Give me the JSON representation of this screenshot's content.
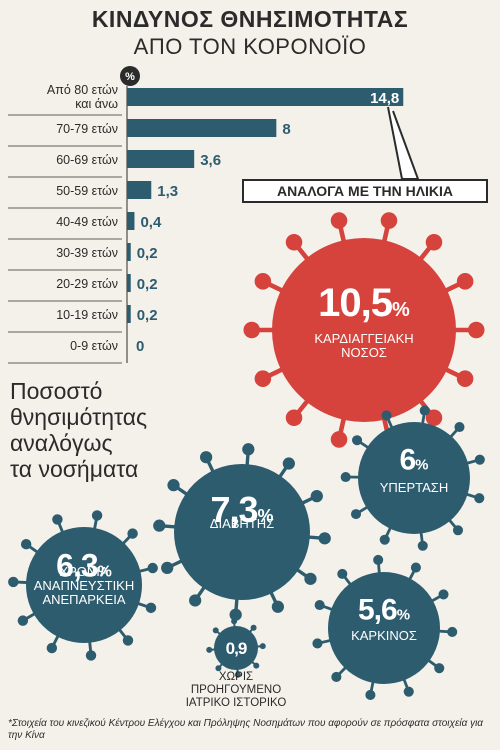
{
  "title": "ΚΙΝΔΥΝΟΣ ΘΝΗΣΙΜΟΤΗΤΑΣ",
  "subtitle": "ΑΠΟ ΤΟΝ ΚΟΡΟΝΟΪΟ",
  "side_title": [
    "Ποσοστό",
    "θνησιμότητας",
    "αναλόγως",
    "τα νοσήματα"
  ],
  "callout": "ΑΝΑΛΟΓΑ ΜΕ ΤΗΝ ΗΛΙΚΙΑ",
  "footnote": "*Στοιχεία του κινεζικού Κέντρου Ελέγχου και Πρόληψης Νοσημάτων που αφορούν σε πρόσφατα στοιχεία για την Κίνα",
  "colors": {
    "bar": "#2d5c6f",
    "teal_virus": "#2d5c6f",
    "red_virus": "#d6423c",
    "text": "#2b2b2b"
  },
  "chart_data": [
    {
      "type": "bar",
      "orientation": "horizontal",
      "unit_label": "%",
      "categories": [
        "Από 80 ετών\nκαι άνω",
        "70-79 ετών",
        "60-69 ετών",
        "50-59 ετών",
        "40-49 ετών",
        "30-39 ετών",
        "20-29 ετών",
        "10-19 ετών",
        "0-9 ετών"
      ],
      "values": [
        14.8,
        8,
        3.6,
        1.3,
        0.4,
        0.2,
        0.2,
        0.2,
        0
      ],
      "value_labels": [
        "14,8",
        "8",
        "3,6",
        "1,3",
        "0,4",
        "0,2",
        "0,2",
        "0,2",
        "0"
      ],
      "xlim": [
        0,
        15
      ]
    },
    {
      "type": "bubble",
      "items": [
        {
          "value": 10.5,
          "value_label": "10,5",
          "label": "ΚΑΡΔΙΑΓΓΕΙΑΚΗ\nΝΟΣΟΣ",
          "color": "#d6423c"
        },
        {
          "value": 6,
          "value_label": "6",
          "label": "ΥΠΕΡΤΑΣΗ",
          "color": "#2d5c6f"
        },
        {
          "value": 7.3,
          "value_label": "7,3",
          "label": "ΔΙΑΒΗΤΗΣ",
          "color": "#2d5c6f"
        },
        {
          "value": 6.3,
          "value_label": "6,3",
          "label": "ΧΡΟΝΙΑ\nΑΝΑΠΝΕΥΣΤΙΚΗ\nΑΝΕΠΑΡΚΕΙΑ",
          "color": "#2d5c6f"
        },
        {
          "value": 5.6,
          "value_label": "5,6",
          "label": "ΚΑΡΚΙΝΟΣ",
          "color": "#2d5c6f"
        },
        {
          "value": 0.9,
          "value_label": "0,9",
          "label": "ΧΩΡΙΣ\nΠΡΟΗΓΟΥΜΕΝΟ\nΙΑΤΡΙΚΟ ΙΣΤΟΡΙΚΟ",
          "color": "#2d5c6f"
        }
      ]
    }
  ]
}
